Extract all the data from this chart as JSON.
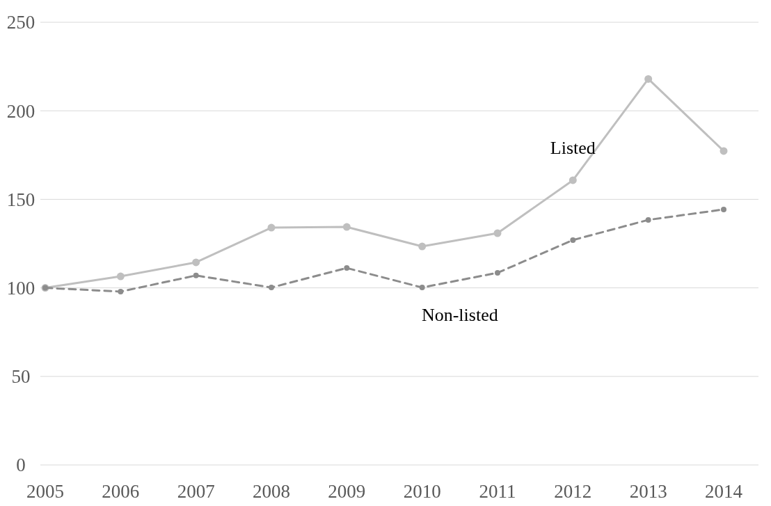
{
  "chart_data": {
    "type": "line",
    "categories": [
      "2005",
      "2006",
      "2007",
      "2008",
      "2009",
      "2010",
      "2011",
      "2012",
      "2013",
      "2014"
    ],
    "series": [
      {
        "name": "Listed",
        "color": "#bfbfbf",
        "line_style": "solid",
        "values": [
          100,
          106.5,
          114.4,
          134,
          134.4,
          123.4,
          130.9,
          160.8,
          218,
          177.3
        ]
      },
      {
        "name": "Non-listed",
        "color": "#8c8c8c",
        "line_style": "dashed",
        "values": [
          100,
          97.9,
          107,
          100.2,
          111.2,
          100.2,
          108.5,
          127,
          138.4,
          144.3
        ]
      }
    ],
    "ylim": [
      0,
      250
    ],
    "yticks": [
      0,
      50,
      100,
      150,
      200,
      250
    ],
    "grid": "y",
    "marker": "circle",
    "legend": false
  }
}
